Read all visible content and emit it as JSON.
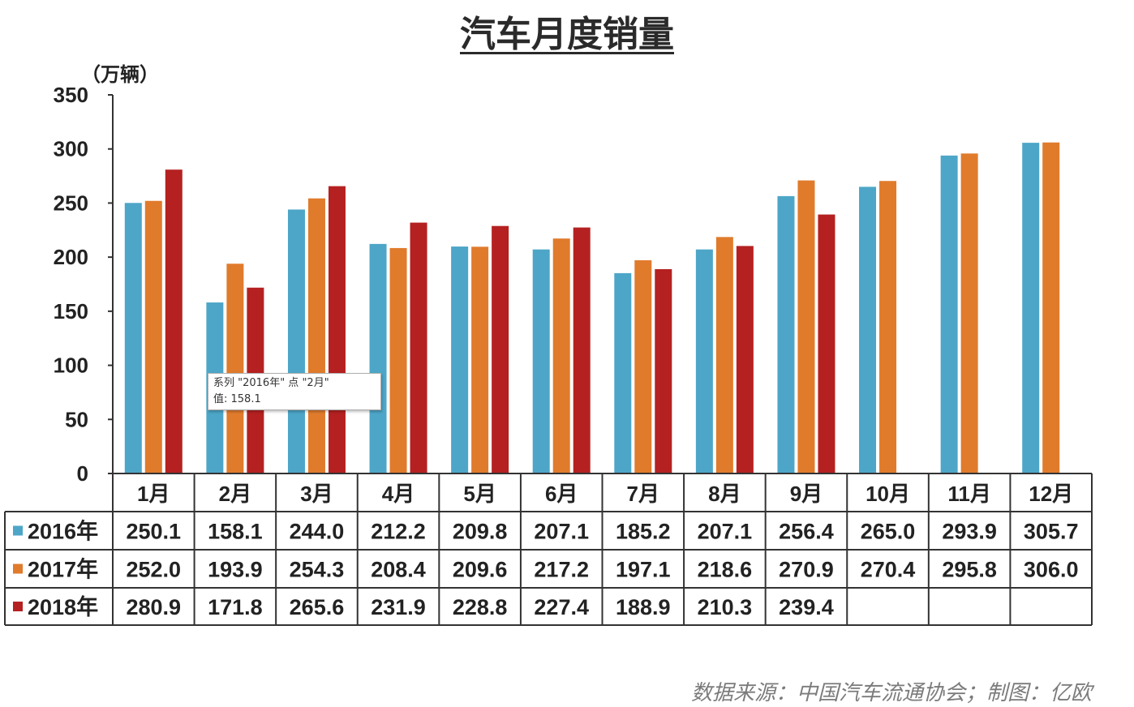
{
  "title": "汽车月度销量",
  "unit_label": "（万辆）",
  "source_note": "数据来源：中国汽车流通协会；制图：亿欧",
  "tooltip": {
    "line1": "系列 \"2016年\" 点 \"2月\"",
    "line2": "值: 158.1"
  },
  "chart_data": {
    "type": "bar",
    "title": "汽车月度销量",
    "ylabel": "（万辆）",
    "ylim": [
      0,
      350
    ],
    "yticks": [
      0,
      50,
      100,
      150,
      200,
      250,
      300,
      350
    ],
    "grid": false,
    "legend": "data-table-left",
    "categories": [
      "1月",
      "2月",
      "3月",
      "4月",
      "5月",
      "6月",
      "7月",
      "8月",
      "9月",
      "10月",
      "11月",
      "12月"
    ],
    "series": [
      {
        "name": "2016年",
        "color": "#4da6c8",
        "values": [
          250.1,
          158.1,
          244.0,
          212.2,
          209.8,
          207.1,
          185.2,
          207.1,
          256.4,
          265.0,
          293.9,
          305.7
        ]
      },
      {
        "name": "2017年",
        "color": "#e07b2c",
        "values": [
          252.0,
          193.9,
          254.3,
          208.4,
          209.6,
          217.2,
          197.1,
          218.6,
          270.9,
          270.4,
          295.8,
          306.0
        ]
      },
      {
        "name": "2018年",
        "color": "#b52121",
        "values": [
          280.9,
          171.8,
          265.6,
          231.9,
          228.8,
          227.4,
          188.9,
          210.3,
          239.4,
          null,
          null,
          null
        ]
      }
    ]
  }
}
